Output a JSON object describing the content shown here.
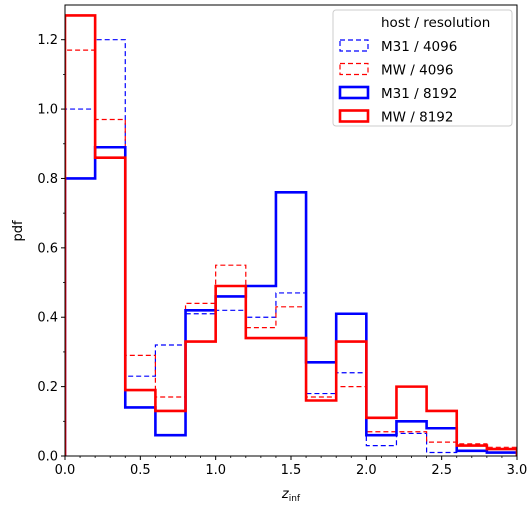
{
  "chart_data": {
    "type": "step-histogram",
    "xlabel": "z",
    "xlabel_sub": "inf",
    "ylabel": "pdf",
    "xlim": [
      0.0,
      3.0
    ],
    "ylim": [
      0.0,
      1.3
    ],
    "x_ticks": [
      "0.0",
      "0.5",
      "1.0",
      "1.5",
      "2.0",
      "2.5",
      "3.0"
    ],
    "y_ticks": [
      "0.0",
      "0.2",
      "0.4",
      "0.6",
      "0.8",
      "1.0",
      "1.2"
    ],
    "bin_edges": [
      0.0,
      0.2,
      0.4,
      0.6,
      0.8,
      1.0,
      1.2,
      1.4,
      1.6,
      1.8,
      2.0,
      2.2,
      2.4,
      2.6,
      2.8,
      3.0
    ],
    "legend_title": "host / resolution",
    "legend_position": "top-right",
    "series": [
      {
        "name": "M31 / 4096",
        "color": "#0000ff",
        "style": "dashed",
        "values": [
          1.0,
          1.2,
          0.23,
          0.32,
          0.41,
          0.42,
          0.4,
          0.47,
          0.18,
          0.24,
          0.03,
          0.065,
          0.01,
          0.03,
          0.01
        ]
      },
      {
        "name": "MW / 4096",
        "color": "#ff0000",
        "style": "dashed",
        "values": [
          1.17,
          0.97,
          0.29,
          0.17,
          0.44,
          0.55,
          0.37,
          0.43,
          0.17,
          0.2,
          0.07,
          0.07,
          0.04,
          0.035,
          0.025
        ]
      },
      {
        "name": "M31 / 8192",
        "color": "#0000ff",
        "style": "solid",
        "values": [
          0.8,
          0.89,
          0.14,
          0.06,
          0.42,
          0.46,
          0.49,
          0.76,
          0.27,
          0.41,
          0.06,
          0.1,
          0.08,
          0.015,
          0.01
        ]
      },
      {
        "name": "MW / 8192",
        "color": "#ff0000",
        "style": "solid",
        "values": [
          1.27,
          0.86,
          0.19,
          0.13,
          0.33,
          0.49,
          0.34,
          0.34,
          0.16,
          0.33,
          0.11,
          0.2,
          0.13,
          0.03,
          0.02
        ]
      }
    ]
  }
}
